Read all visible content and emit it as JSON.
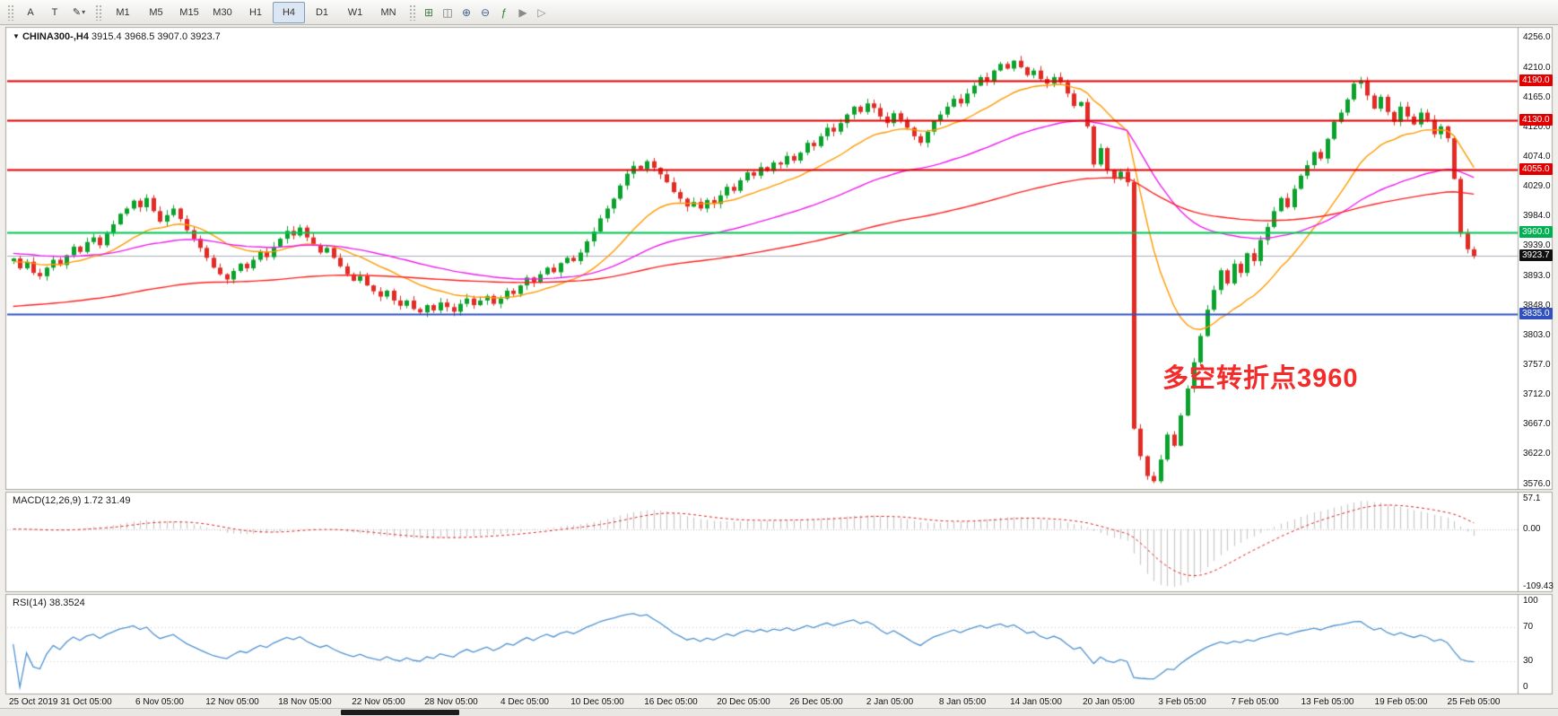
{
  "toolbar": {
    "buttons": [
      {
        "name": "text-tool-button",
        "label": "A"
      },
      {
        "name": "label-tool-button",
        "label": "T"
      }
    ],
    "draw_button": {
      "glyph": "✎",
      "dropdown": "▾"
    },
    "timeframes": [
      {
        "label": "M1",
        "active": false
      },
      {
        "label": "M5",
        "active": false
      },
      {
        "label": "M15",
        "active": false
      },
      {
        "label": "M30",
        "active": false
      },
      {
        "label": "H1",
        "active": false
      },
      {
        "label": "H4",
        "active": true
      },
      {
        "label": "D1",
        "active": false
      },
      {
        "label": "W1",
        "active": false
      },
      {
        "label": "MN",
        "active": false
      }
    ],
    "icons": [
      {
        "name": "new-chart-icon",
        "glyph": "⊞",
        "color": "#4a7d4a"
      },
      {
        "name": "chart-candles-icon",
        "glyph": "◫",
        "color": "#6b6b6b"
      },
      {
        "name": "zoom-in-icon",
        "glyph": "⊕",
        "color": "#44608a"
      },
      {
        "name": "zoom-out-icon",
        "glyph": "⊖",
        "color": "#44608a"
      },
      {
        "name": "indicators-icon",
        "glyph": "ƒ",
        "color": "#2e7d32"
      },
      {
        "name": "auto-scroll-icon",
        "glyph": "▶",
        "color": "#8a8a8a"
      },
      {
        "name": "chart-shift-icon",
        "glyph": "▷",
        "color": "#8a8a8a"
      }
    ]
  },
  "chart": {
    "dropdown_marker": "▼",
    "symbol": "CHINA300-,H4",
    "ohlc": "3915.4 3968.5 3907.0 3923.7",
    "annotation": {
      "text": "多空转折点3960",
      "color": "#f32b2b"
    },
    "badges": [
      {
        "label": "4190.0",
        "value": 4190.0,
        "bg": "#e00000"
      },
      {
        "label": "4130.0",
        "value": 4130.0,
        "bg": "#e00000"
      },
      {
        "label": "4055.0",
        "value": 4055.0,
        "bg": "#e00000"
      },
      {
        "label": "3960.0",
        "value": 3960.0,
        "bg": "#00b050"
      },
      {
        "label": "3835.0",
        "value": 3835.0,
        "bg": "#3050c0"
      }
    ],
    "current_price": {
      "label": "3923.7",
      "value": 3923.7,
      "bg": "#101010"
    }
  },
  "macd": {
    "label": "MACD(12,26,9) 1.72 31.49",
    "ticks": [
      {
        "label": "57.1",
        "value": 57.1
      },
      {
        "label": "0.00",
        "value": 0
      },
      {
        "label": "-109.43",
        "value": -109.43
      }
    ]
  },
  "rsi": {
    "label": "RSI(14) 38.3524",
    "ticks": [
      {
        "label": "100",
        "value": 100
      },
      {
        "label": "70",
        "value": 70
      },
      {
        "label": "30",
        "value": 30
      },
      {
        "label": "0",
        "value": 0
      }
    ],
    "levels": [
      70,
      30
    ]
  },
  "chart_data": {
    "type": "candlestick",
    "symbol": "CHINA300-",
    "period": "H4",
    "last_ohlc": {
      "open": 3915.4,
      "high": 3968.5,
      "low": 3907.0,
      "close": 3923.7
    },
    "y_range": [
      3576.0,
      4256.0
    ],
    "y_ticks": [
      "4256.0",
      "4210.0",
      "4165.0",
      "4120.0",
      "4074.0",
      "4029.0",
      "3984.0",
      "3939.0",
      "3893.0",
      "3848.0",
      "3803.0",
      "3757.0",
      "3712.0",
      "3667.0",
      "3622.0",
      "3576.0"
    ],
    "closes": [
      3920,
      3905,
      3915,
      3898,
      3893,
      3906,
      3918,
      3910,
      3925,
      3938,
      3930,
      3945,
      3952,
      3940,
      3958,
      3972,
      3988,
      3996,
      4008,
      3998,
      4012,
      3992,
      3976,
      3986,
      3996,
      3980,
      3963,
      3950,
      3936,
      3921,
      3906,
      3896,
      3888,
      3901,
      3912,
      3905,
      3918,
      3930,
      3922,
      3938,
      3950,
      3962,
      3955,
      3967,
      3952,
      3940,
      3929,
      3936,
      3921,
      3908,
      3896,
      3886,
      3893,
      3879,
      3870,
      3862,
      3871,
      3856,
      3848,
      3856,
      3843,
      3838,
      3849,
      3841,
      3853,
      3846,
      3839,
      3851,
      3859,
      3849,
      3856,
      3863,
      3851,
      3859,
      3871,
      3866,
      3879,
      3891,
      3883,
      3896,
      3906,
      3899,
      3913,
      3921,
      3916,
      3929,
      3946,
      3961,
      3981,
      3996,
      4011,
      4031,
      4049,
      4061,
      4056,
      4068,
      4058,
      4048,
      4036,
      4021,
      4011,
      3999,
      4006,
      3996,
      4009,
      4003,
      4016,
      4029,
      4023,
      4039,
      4051,
      4046,
      4059,
      4053,
      4066,
      4063,
      4076,
      4069,
      4081,
      4096,
      4091,
      4106,
      4119,
      4113,
      4126,
      4139,
      4151,
      4143,
      4156,
      4149,
      4136,
      4126,
      4141,
      4131,
      4119,
      4106,
      4096,
      4113,
      4129,
      4139,
      4151,
      4163,
      4156,
      4171,
      4183,
      4196,
      4189,
      4206,
      4216,
      4209,
      4221,
      4211,
      4199,
      4206,
      4193,
      4186,
      4196,
      4188,
      4171,
      4152,
      4158,
      4121,
      4063,
      4088,
      4055,
      4041,
      4052,
      4036,
      3661,
      3619,
      3589,
      3581,
      3614,
      3652,
      3635,
      3681,
      3722,
      3762,
      3802,
      3842,
      3872,
      3902,
      3882,
      3912,
      3898,
      3928,
      3916,
      3948,
      3968,
      3992,
      4012,
      3998,
      4026,
      4046,
      4062,
      4082,
      4072,
      4102,
      4128,
      4142,
      4162,
      4186,
      4191,
      4168,
      4148,
      4166,
      4143,
      4128,
      4151,
      4136,
      4124,
      4142,
      4131,
      4109,
      4121,
      4103,
      4041,
      3958,
      3934,
      3923.7
    ],
    "horizontal_lines": [
      {
        "value": 4190.0,
        "color": "#e00000"
      },
      {
        "value": 4130.0,
        "color": "#e00000"
      },
      {
        "value": 4055.0,
        "color": "#e00000"
      },
      {
        "value": 3960.0,
        "color": "#00c853"
      },
      {
        "value": 3835.0,
        "color": "#3050c0"
      }
    ],
    "bid_line": 3923.7,
    "moving_averages": [
      {
        "type": "ema",
        "period": 18,
        "color": "#ff9a00"
      },
      {
        "type": "ema",
        "period": 55,
        "color": "#ef1fef"
      },
      {
        "type": "ema",
        "period": 140,
        "color": "#ff2020"
      }
    ],
    "indicators": [
      {
        "name": "MACD",
        "params": [
          12,
          26,
          9
        ],
        "display": "1.72 31.49",
        "scale": [
          -109.43,
          57.1
        ]
      },
      {
        "name": "RSI",
        "params": [
          14
        ],
        "display": "38.3524",
        "scale": [
          0,
          100
        ],
        "levels": [
          30,
          70
        ]
      }
    ],
    "x_labels": [
      "25 Oct 2019",
      "31 Oct 05:00",
      "6 Nov 05:00",
      "12 Nov 05:00",
      "18 Nov 05:00",
      "22 Nov 05:00",
      "28 Nov 05:00",
      "4 Dec 05:00",
      "10 Dec 05:00",
      "16 Dec 05:00",
      "20 Dec 05:00",
      "26 Dec 05:00",
      "2 Jan 05:00",
      "8 Jan 05:00",
      "14 Jan 05:00",
      "20 Jan 05:00",
      "3 Feb 05:00",
      "7 Feb 05:00",
      "13 Feb 05:00",
      "19 Feb 05:00",
      "25 Feb 05:00"
    ]
  }
}
